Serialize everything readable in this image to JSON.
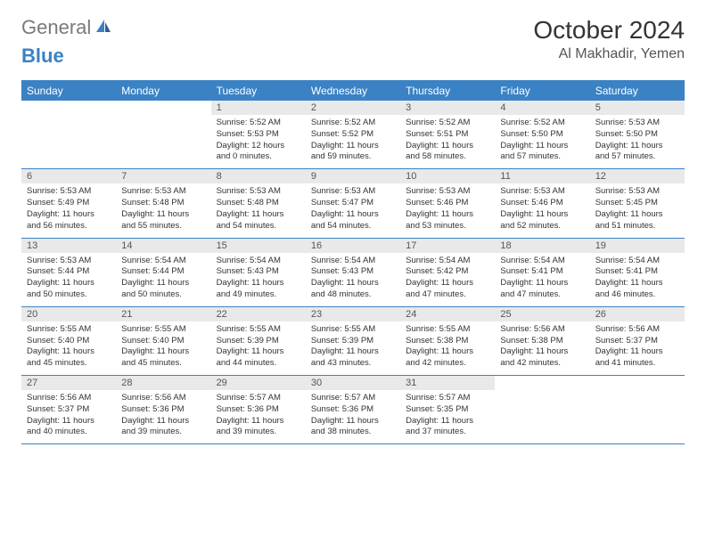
{
  "logo": {
    "general": "General",
    "blue": "Blue"
  },
  "title": "October 2024",
  "location": "Al Makhadir, Yemen",
  "colors": {
    "header_bg": "#3b82c4",
    "header_text": "#ffffff",
    "daynum_bg": "#e9e9e9",
    "text": "#333333",
    "logo_gray": "#7a7a7a",
    "logo_blue": "#3b82c4",
    "border": "#3b82c4"
  },
  "day_names": [
    "Sunday",
    "Monday",
    "Tuesday",
    "Wednesday",
    "Thursday",
    "Friday",
    "Saturday"
  ],
  "weeks": [
    [
      {
        "empty": true
      },
      {
        "empty": true
      },
      {
        "num": "1",
        "sunrise": "5:52 AM",
        "sunset": "5:53 PM",
        "daylight": "12 hours and 0 minutes."
      },
      {
        "num": "2",
        "sunrise": "5:52 AM",
        "sunset": "5:52 PM",
        "daylight": "11 hours and 59 minutes."
      },
      {
        "num": "3",
        "sunrise": "5:52 AM",
        "sunset": "5:51 PM",
        "daylight": "11 hours and 58 minutes."
      },
      {
        "num": "4",
        "sunrise": "5:52 AM",
        "sunset": "5:50 PM",
        "daylight": "11 hours and 57 minutes."
      },
      {
        "num": "5",
        "sunrise": "5:53 AM",
        "sunset": "5:50 PM",
        "daylight": "11 hours and 57 minutes."
      }
    ],
    [
      {
        "num": "6",
        "sunrise": "5:53 AM",
        "sunset": "5:49 PM",
        "daylight": "11 hours and 56 minutes."
      },
      {
        "num": "7",
        "sunrise": "5:53 AM",
        "sunset": "5:48 PM",
        "daylight": "11 hours and 55 minutes."
      },
      {
        "num": "8",
        "sunrise": "5:53 AM",
        "sunset": "5:48 PM",
        "daylight": "11 hours and 54 minutes."
      },
      {
        "num": "9",
        "sunrise": "5:53 AM",
        "sunset": "5:47 PM",
        "daylight": "11 hours and 54 minutes."
      },
      {
        "num": "10",
        "sunrise": "5:53 AM",
        "sunset": "5:46 PM",
        "daylight": "11 hours and 53 minutes."
      },
      {
        "num": "11",
        "sunrise": "5:53 AM",
        "sunset": "5:46 PM",
        "daylight": "11 hours and 52 minutes."
      },
      {
        "num": "12",
        "sunrise": "5:53 AM",
        "sunset": "5:45 PM",
        "daylight": "11 hours and 51 minutes."
      }
    ],
    [
      {
        "num": "13",
        "sunrise": "5:53 AM",
        "sunset": "5:44 PM",
        "daylight": "11 hours and 50 minutes."
      },
      {
        "num": "14",
        "sunrise": "5:54 AM",
        "sunset": "5:44 PM",
        "daylight": "11 hours and 50 minutes."
      },
      {
        "num": "15",
        "sunrise": "5:54 AM",
        "sunset": "5:43 PM",
        "daylight": "11 hours and 49 minutes."
      },
      {
        "num": "16",
        "sunrise": "5:54 AM",
        "sunset": "5:43 PM",
        "daylight": "11 hours and 48 minutes."
      },
      {
        "num": "17",
        "sunrise": "5:54 AM",
        "sunset": "5:42 PM",
        "daylight": "11 hours and 47 minutes."
      },
      {
        "num": "18",
        "sunrise": "5:54 AM",
        "sunset": "5:41 PM",
        "daylight": "11 hours and 47 minutes."
      },
      {
        "num": "19",
        "sunrise": "5:54 AM",
        "sunset": "5:41 PM",
        "daylight": "11 hours and 46 minutes."
      }
    ],
    [
      {
        "num": "20",
        "sunrise": "5:55 AM",
        "sunset": "5:40 PM",
        "daylight": "11 hours and 45 minutes."
      },
      {
        "num": "21",
        "sunrise": "5:55 AM",
        "sunset": "5:40 PM",
        "daylight": "11 hours and 45 minutes."
      },
      {
        "num": "22",
        "sunrise": "5:55 AM",
        "sunset": "5:39 PM",
        "daylight": "11 hours and 44 minutes."
      },
      {
        "num": "23",
        "sunrise": "5:55 AM",
        "sunset": "5:39 PM",
        "daylight": "11 hours and 43 minutes."
      },
      {
        "num": "24",
        "sunrise": "5:55 AM",
        "sunset": "5:38 PM",
        "daylight": "11 hours and 42 minutes."
      },
      {
        "num": "25",
        "sunrise": "5:56 AM",
        "sunset": "5:38 PM",
        "daylight": "11 hours and 42 minutes."
      },
      {
        "num": "26",
        "sunrise": "5:56 AM",
        "sunset": "5:37 PM",
        "daylight": "11 hours and 41 minutes."
      }
    ],
    [
      {
        "num": "27",
        "sunrise": "5:56 AM",
        "sunset": "5:37 PM",
        "daylight": "11 hours and 40 minutes."
      },
      {
        "num": "28",
        "sunrise": "5:56 AM",
        "sunset": "5:36 PM",
        "daylight": "11 hours and 39 minutes."
      },
      {
        "num": "29",
        "sunrise": "5:57 AM",
        "sunset": "5:36 PM",
        "daylight": "11 hours and 39 minutes."
      },
      {
        "num": "30",
        "sunrise": "5:57 AM",
        "sunset": "5:36 PM",
        "daylight": "11 hours and 38 minutes."
      },
      {
        "num": "31",
        "sunrise": "5:57 AM",
        "sunset": "5:35 PM",
        "daylight": "11 hours and 37 minutes."
      },
      {
        "empty": true
      },
      {
        "empty": true
      }
    ]
  ]
}
